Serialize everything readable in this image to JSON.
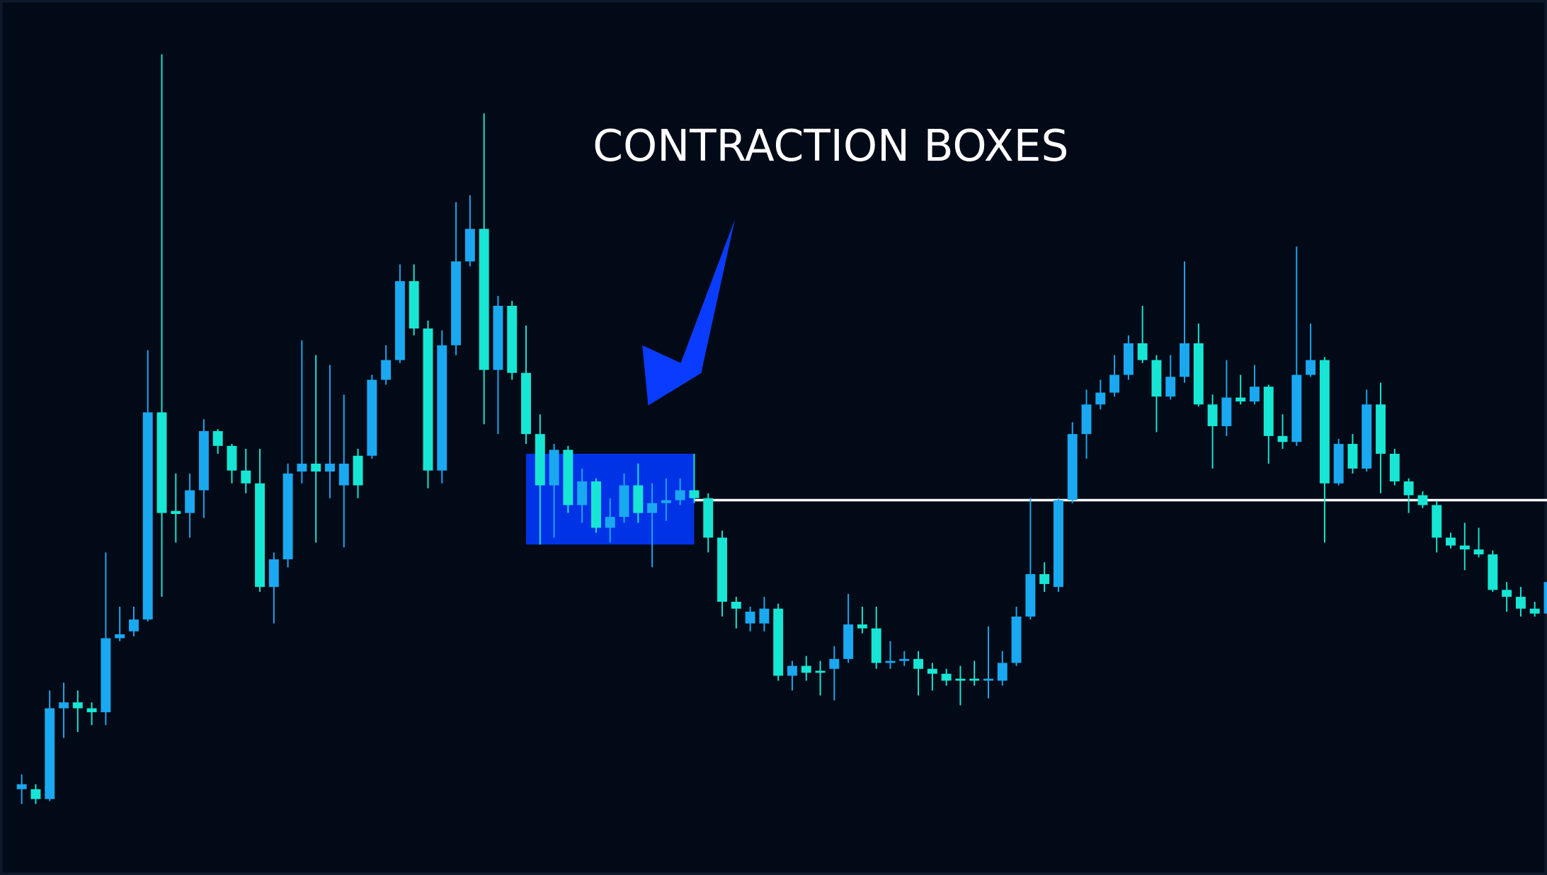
{
  "chart_data": {
    "type": "candlestick",
    "title": "CONTRACTION BOXES",
    "up_color": "#1aa8f0",
    "down_color": "#17e6d4",
    "ylim": [
      13,
      900
    ],
    "open": [
      100,
      100,
      90,
      182,
      188,
      182,
      178,
      253,
      260,
      272,
      482,
      382,
      380,
      403,
      463,
      448,
      423,
      410,
      305,
      333,
      422,
      430,
      422,
      408,
      438,
      438,
      515,
      535,
      615,
      567,
      423,
      550,
      635,
      668,
      525,
      590,
      522,
      460,
      408,
      444,
      388,
      412,
      365,
      376,
      408,
      380,
      390,
      393,
      403,
      395,
      355,
      290,
      268,
      268,
      283,
      215,
      225,
      220,
      222,
      232,
      267,
      263,
      228,
      230,
      232,
      222,
      217,
      212,
      212,
      210,
      210,
      228,
      275,
      318,
      305,
      393,
      460,
      490,
      502,
      520,
      552,
      535,
      498,
      518,
      552,
      490,
      468,
      497,
      493,
      508,
      458,
      452,
      520,
      535,
      410,
      450,
      425,
      490,
      440,
      412,
      398,
      388,
      355,
      347,
      343,
      338,
      302,
      295,
      283,
      278
    ],
    "high": [
      115,
      105,
      200,
      208,
      200,
      188,
      340,
      285,
      285,
      545,
      845,
      420,
      420,
      475,
      465,
      450,
      445,
      445,
      340,
      430,
      555,
      540,
      530,
      500,
      445,
      520,
      550,
      632,
      632,
      575,
      565,
      695,
      702,
      785,
      600,
      595,
      570,
      480,
      450,
      448,
      425,
      415,
      395,
      420,
      430,
      410,
      415,
      415,
      440,
      400,
      362,
      295,
      285,
      295,
      288,
      230,
      235,
      230,
      245,
      298,
      285,
      285,
      250,
      240,
      240,
      228,
      222,
      225,
      230,
      265,
      240,
      285,
      395,
      330,
      395,
      472,
      505,
      515,
      540,
      560,
      590,
      540,
      540,
      635,
      572,
      500,
      535,
      520,
      530,
      510,
      480,
      650,
      572,
      538,
      455,
      460,
      505,
      512,
      445,
      415,
      402,
      392,
      360,
      370,
      365,
      342,
      310,
      305,
      290,
      325
    ],
    "low": [
      85,
      85,
      88,
      152,
      158,
      165,
      165,
      250,
      255,
      270,
      295,
      350,
      355,
      375,
      440,
      410,
      400,
      300,
      268,
      325,
      410,
      350,
      395,
      345,
      395,
      435,
      510,
      532,
      560,
      405,
      410,
      540,
      630,
      470,
      460,
      515,
      450,
      348,
      355,
      380,
      370,
      360,
      350,
      370,
      370,
      325,
      372,
      388,
      390,
      340,
      275,
      263,
      260,
      260,
      210,
      200,
      210,
      195,
      190,
      228,
      258,
      222,
      222,
      225,
      195,
      200,
      205,
      185,
      205,
      192,
      205,
      225,
      272,
      300,
      300,
      390,
      435,
      485,
      498,
      515,
      532,
      462,
      495,
      512,
      488,
      425,
      458,
      490,
      490,
      430,
      445,
      448,
      518,
      350,
      408,
      420,
      422,
      400,
      408,
      380,
      385,
      340,
      344,
      322,
      335,
      300,
      280,
      275,
      275,
      275
    ],
    "close": [
      105,
      90,
      182,
      188,
      182,
      178,
      253,
      257,
      272,
      482,
      380,
      379,
      403,
      463,
      448,
      423,
      410,
      305,
      333,
      420,
      430,
      422,
      430,
      430,
      408,
      515,
      535,
      615,
      567,
      423,
      550,
      635,
      668,
      525,
      590,
      522,
      460,
      408,
      444,
      388,
      412,
      365,
      376,
      408,
      380,
      390,
      393,
      403,
      395,
      355,
      290,
      283,
      280,
      283,
      215,
      225,
      218,
      218,
      232,
      267,
      263,
      228,
      230,
      232,
      222,
      217,
      210,
      210,
      210,
      212,
      228,
      275,
      318,
      308,
      393,
      460,
      490,
      502,
      520,
      552,
      535,
      498,
      518,
      552,
      490,
      468,
      497,
      493,
      508,
      458,
      452,
      520,
      535,
      410,
      450,
      425,
      490,
      440,
      412,
      398,
      388,
      355,
      347,
      343,
      338,
      302,
      295,
      283,
      278,
      310
    ],
    "contraction_box": {
      "start": 36,
      "end": 48,
      "top": 440,
      "bottom": 348,
      "color": "#0032e6"
    },
    "level": {
      "start": 48,
      "value": 393,
      "color": "#ffffff"
    }
  }
}
